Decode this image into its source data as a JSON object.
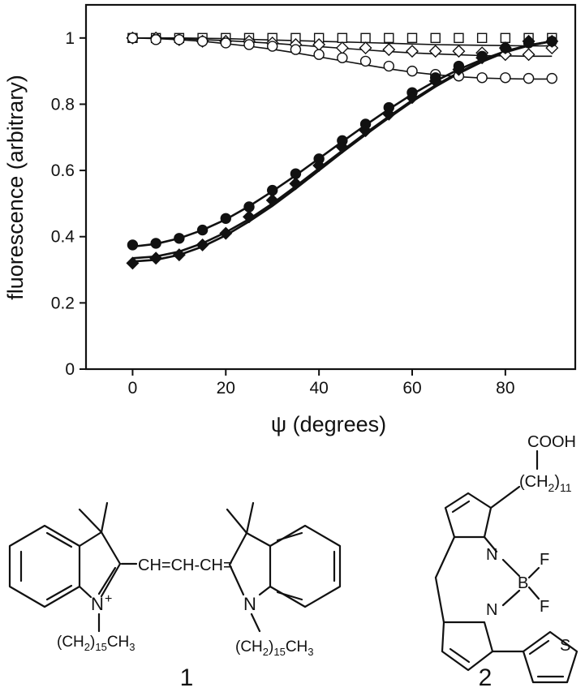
{
  "chart_data": {
    "type": "scatter",
    "xlabel": "ψ (degrees)",
    "ylabel": "fluorescence (arbitrary)",
    "xlim": [
      -10,
      95
    ],
    "ylim": [
      0,
      1.1
    ],
    "x_ticks": [
      0,
      20,
      40,
      60,
      80
    ],
    "y_ticks": [
      0,
      0.2,
      0.4,
      0.6,
      0.8,
      1
    ],
    "x_tick_labels": [
      "0",
      "20",
      "40",
      "60",
      "80"
    ],
    "y_tick_labels": [
      "0",
      "0.2",
      "0.4",
      "0.6",
      "0.8",
      "1"
    ],
    "grid": false,
    "legend": "none",
    "x": [
      0,
      5,
      10,
      15,
      20,
      25,
      30,
      35,
      40,
      45,
      50,
      55,
      60,
      65,
      70,
      75,
      80,
      85,
      90
    ],
    "series": [
      {
        "marker": "open-square",
        "fill": "none",
        "values": [
          1.0,
          1.0,
          1.0,
          1.0,
          1.0,
          1.0,
          1.0,
          1.0,
          1.0,
          1.0,
          1.0,
          1.0,
          1.0,
          1.0,
          1.0,
          1.0,
          1.0,
          1.0,
          1.0
        ]
      },
      {
        "marker": "open-diamond",
        "fill": "none",
        "values": [
          1.0,
          1.0,
          0.995,
          0.99,
          0.99,
          0.99,
          0.985,
          0.98,
          0.98,
          0.97,
          0.97,
          0.965,
          0.96,
          0.96,
          0.96,
          0.955,
          0.95,
          0.95,
          0.97
        ]
      },
      {
        "marker": "open-circle",
        "fill": "none",
        "values": [
          1.0,
          0.995,
          0.995,
          0.99,
          0.985,
          0.98,
          0.975,
          0.965,
          0.95,
          0.94,
          0.93,
          0.915,
          0.9,
          0.89,
          0.885,
          0.88,
          0.88,
          0.878,
          0.878
        ]
      },
      {
        "marker": "filled-circle",
        "fill": "#111111",
        "values": [
          0.375,
          0.38,
          0.395,
          0.42,
          0.455,
          0.49,
          0.54,
          0.59,
          0.635,
          0.69,
          0.74,
          0.79,
          0.835,
          0.88,
          0.915,
          0.945,
          0.97,
          0.985,
          0.99
        ]
      },
      {
        "marker": "filled-diamond",
        "fill": "#111111",
        "values": [
          0.32,
          0.335,
          0.345,
          0.375,
          0.41,
          0.46,
          0.51,
          0.56,
          0.615,
          0.67,
          0.72,
          0.77,
          0.82,
          0.87,
          0.905,
          0.94,
          0.97,
          0.99,
          0.99
        ]
      }
    ],
    "curves": [
      {
        "style": "thin",
        "values": [
          1.0,
          1.0,
          1.0,
          0.999,
          0.998,
          0.996,
          0.994,
          0.992,
          0.99,
          0.988,
          0.986,
          0.984,
          0.982,
          0.98,
          0.979,
          0.978,
          0.977,
          0.976,
          0.976
        ]
      },
      {
        "style": "thin",
        "values": [
          1.0,
          1.0,
          0.998,
          0.995,
          0.992,
          0.988,
          0.984,
          0.979,
          0.974,
          0.969,
          0.964,
          0.959,
          0.955,
          0.952,
          0.949,
          0.947,
          0.946,
          0.945,
          0.945
        ]
      },
      {
        "style": "thin",
        "values": [
          1.0,
          0.998,
          0.995,
          0.99,
          0.983,
          0.975,
          0.966,
          0.955,
          0.943,
          0.931,
          0.919,
          0.907,
          0.897,
          0.889,
          0.883,
          0.879,
          0.877,
          0.876,
          0.876
        ]
      },
      {
        "style": "thick",
        "values": [
          0.37,
          0.378,
          0.395,
          0.42,
          0.452,
          0.492,
          0.537,
          0.585,
          0.636,
          0.687,
          0.737,
          0.785,
          0.83,
          0.87,
          0.905,
          0.935,
          0.96,
          0.978,
          0.99
        ]
      },
      {
        "style": "thick",
        "values": [
          0.335,
          0.34,
          0.355,
          0.38,
          0.413,
          0.453,
          0.5,
          0.552,
          0.606,
          0.66,
          0.713,
          0.763,
          0.812,
          0.857,
          0.896,
          0.93,
          0.958,
          0.978,
          0.99
        ]
      },
      {
        "style": "thick",
        "values": [
          0.325,
          0.33,
          0.345,
          0.37,
          0.404,
          0.446,
          0.493,
          0.545,
          0.6,
          0.655,
          0.708,
          0.759,
          0.808,
          0.853,
          0.893,
          0.928,
          0.957,
          0.977,
          0.99
        ]
      }
    ]
  },
  "structures": {
    "compound_1": {
      "number": "1",
      "chain_label": "CH=CH-CH=",
      "n_plus": "N",
      "plus": "+",
      "n_right": "N",
      "left_substituent_prefix": "(CH",
      "left_substituent_sub1": "2",
      "left_substituent_mid": ")",
      "left_substituent_sub2": "15",
      "left_substituent_end": "CH",
      "left_substituent_sub3": "3",
      "right_substituent_prefix": "(CH",
      "right_substituent_sub1": "2",
      "right_substituent_mid": ")",
      "right_substituent_sub2": "15",
      "right_substituent_end": "CH",
      "right_substituent_sub3": "3"
    },
    "compound_2": {
      "number": "2",
      "acid": "COOH",
      "chain_prefix": "(CH",
      "chain_sub1": "2",
      "chain_mid": ")",
      "chain_sub2": "11",
      "n_top": "N",
      "n_bottom": "N",
      "boron": "B",
      "f_top": "F",
      "f_bottom": "F",
      "sulfur": "S"
    }
  }
}
